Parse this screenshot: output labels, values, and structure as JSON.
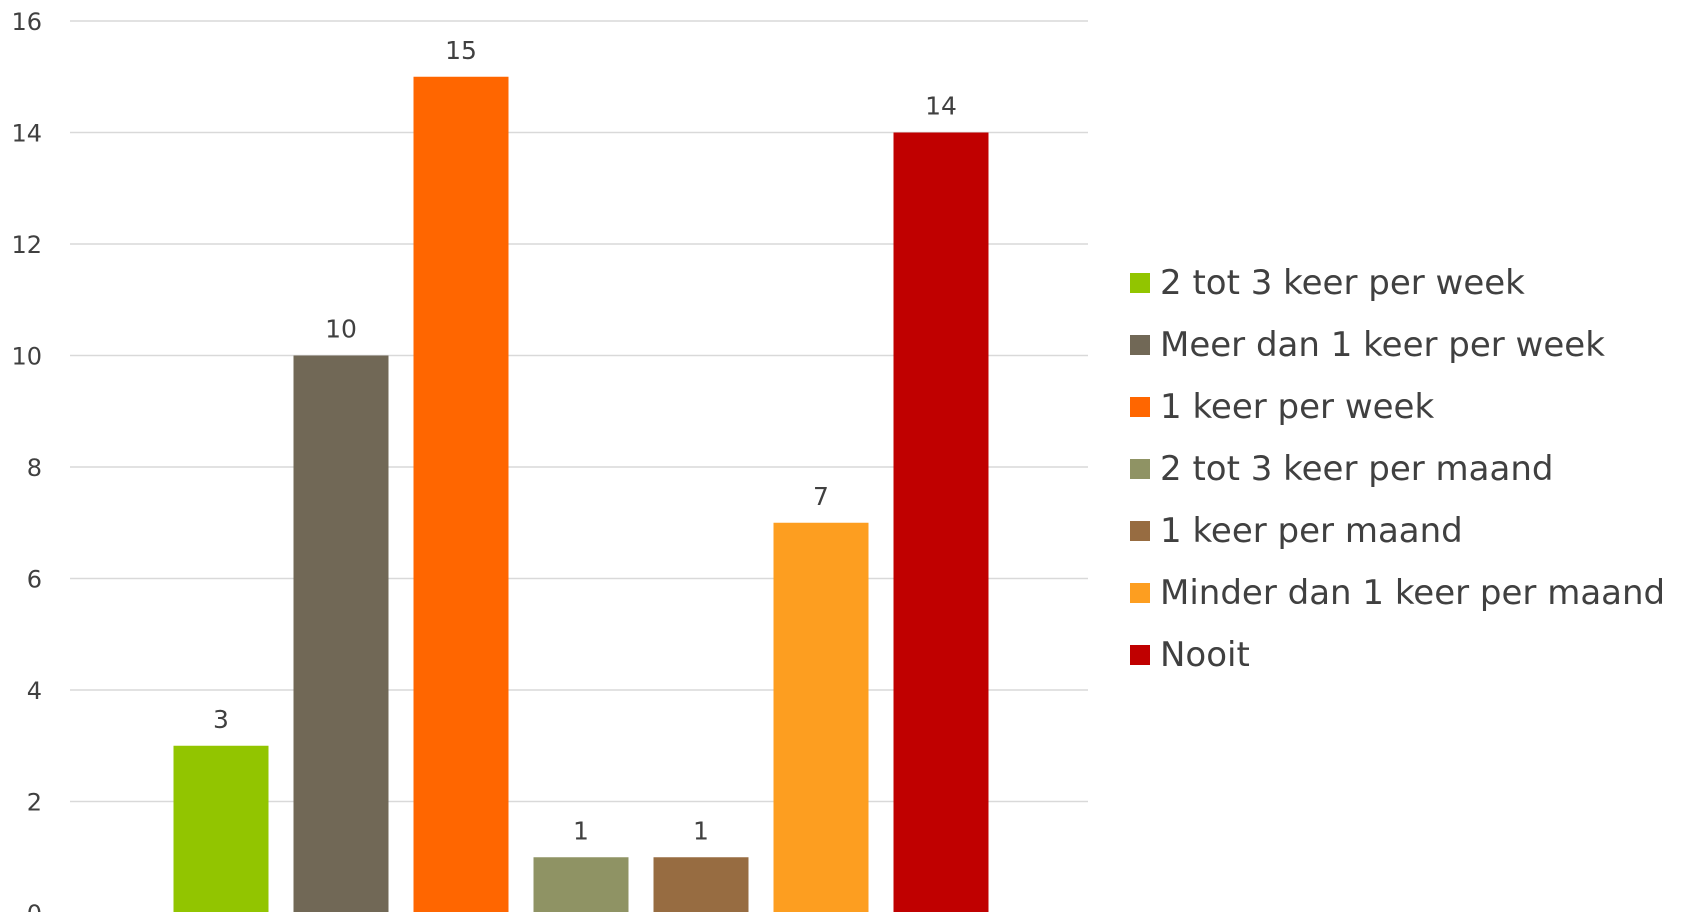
{
  "chart_data": {
    "type": "bar",
    "categories": [
      "2 tot 3 keer per week",
      "Meer dan 1 keer per week",
      "1 keer per week",
      "2 tot 3 keer per maand",
      "1 keer per maand",
      "Minder dan 1 keer per maand",
      "Nooit"
    ],
    "values": [
      3,
      10,
      15,
      1,
      1,
      7,
      14
    ],
    "colors": [
      "#92C500",
      "#716856",
      "#FF6600",
      "#8F9364",
      "#976C41",
      "#FD9E20",
      "#C00000"
    ],
    "ylim": [
      0,
      16
    ],
    "yticks": [
      0,
      2,
      4,
      6,
      8,
      10,
      12,
      14,
      16
    ],
    "grid": true,
    "legend_position": "right",
    "data_labels": true,
    "title": "",
    "xlabel": "",
    "ylabel": ""
  },
  "legend": {
    "items": [
      {
        "label": "2 tot 3 keer per week",
        "color": "#92C500"
      },
      {
        "label": "Meer dan 1 keer per week",
        "color": "#716856"
      },
      {
        "label": "1 keer per week",
        "color": "#FF6600"
      },
      {
        "label": "2 tot 3 keer per maand",
        "color": "#8F9364"
      },
      {
        "label": "1 keer per maand",
        "color": "#976C41"
      },
      {
        "label": "Minder dan 1 keer per maand",
        "color": "#FD9E20"
      },
      {
        "label": "Nooit",
        "color": "#C00000"
      }
    ]
  }
}
